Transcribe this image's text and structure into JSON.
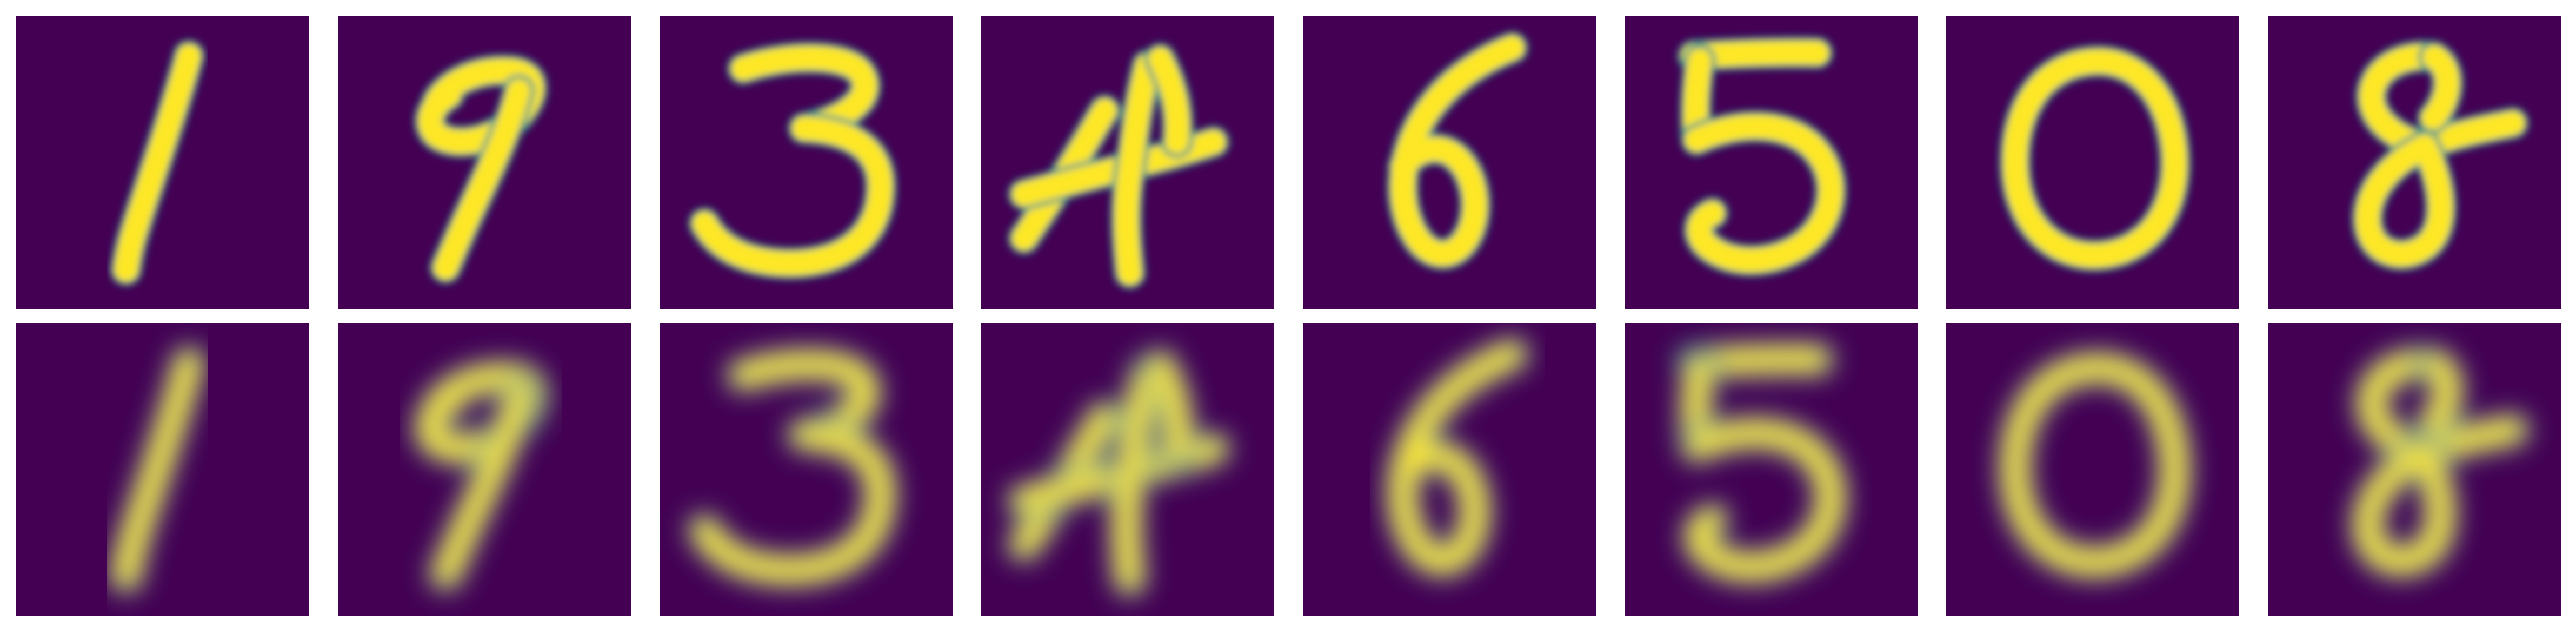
{
  "figure": {
    "rows": [
      {
        "name": "original-row",
        "digits": [
          "1",
          "9",
          "3",
          "4",
          "6",
          "5",
          "0",
          "8"
        ],
        "style": "sharp"
      },
      {
        "name": "reconstruction-row",
        "digits": [
          "1",
          "9",
          "3",
          "4",
          "6",
          "5",
          "0",
          "8"
        ],
        "style": "blurred"
      }
    ],
    "colormap": {
      "name": "viridis",
      "background": "#440154",
      "edge": "#21918c",
      "mid": "#5ec962",
      "foreground": "#fde725"
    }
  }
}
